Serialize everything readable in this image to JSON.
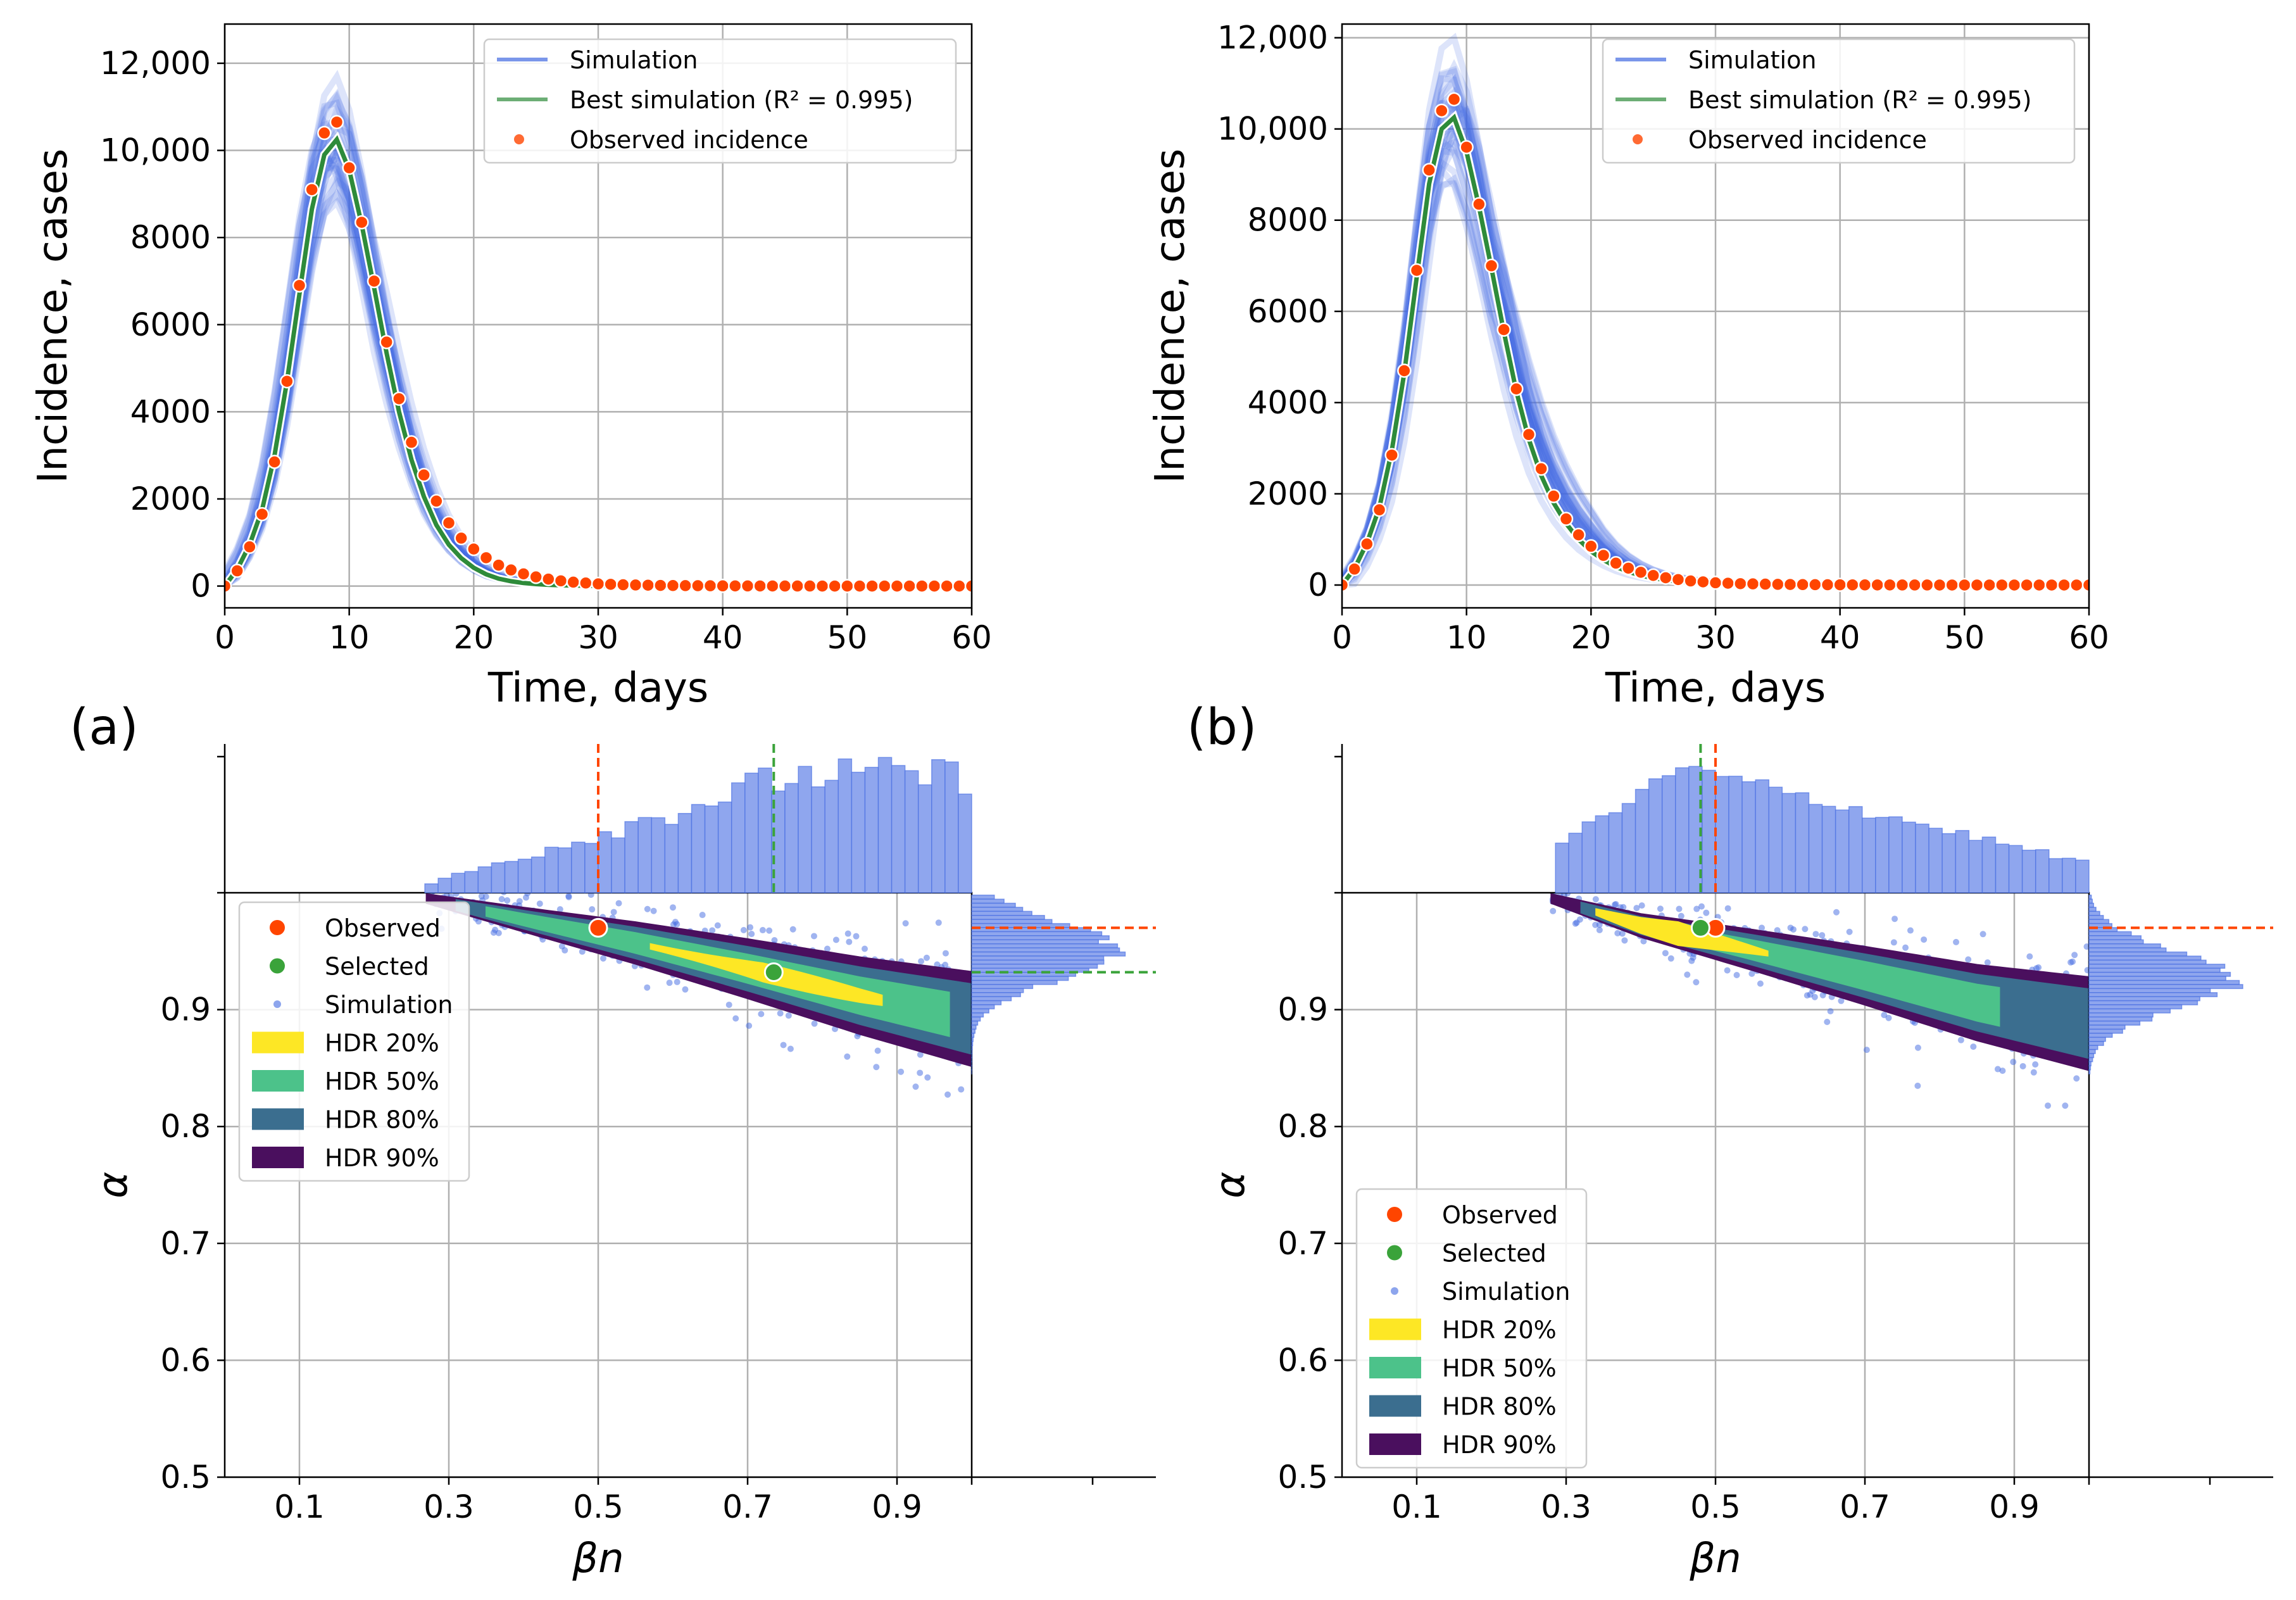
{
  "colors": {
    "simulation": "#4169e1",
    "best": "#2e8b3a",
    "observed": "#ff4500",
    "selected": "#3aa33a",
    "hdr20": "#fde725",
    "hdr50": "#4cc28a",
    "hdr80": "#3b6e8f",
    "hdr90": "#4a0f5e",
    "hist": "#8fa6ee"
  },
  "panels": [
    {
      "label": "(a)",
      "incidence": {
        "xlabel": "Time, days",
        "ylabel": "Incidence, cases",
        "xlim": [
          0,
          60
        ],
        "ylim": [
          -500,
          12900
        ],
        "xticks": [
          0,
          10,
          20,
          30,
          40,
          50,
          60
        ],
        "xtick_labels": [
          "0",
          "10",
          "20",
          "30",
          "40",
          "50",
          "60"
        ],
        "yticks": [
          0,
          2000,
          4000,
          6000,
          8000,
          10000,
          12000
        ],
        "ytick_labels": [
          "0",
          "2000",
          "4000",
          "6000",
          "8000",
          "10,000",
          "12,000"
        ],
        "legend": [
          {
            "key": "simulation",
            "label": "Simulation"
          },
          {
            "key": "best",
            "label": "Best simulation (R² = 0.995)"
          },
          {
            "key": "observed",
            "label": "Observed incidence"
          }
        ]
      },
      "params": {
        "xlabel": "βn",
        "ylabel": "α",
        "xlim": [
          0.0,
          1.0
        ],
        "ylim": [
          0.5,
          1.0
        ],
        "xticks": [
          0.1,
          0.3,
          0.5,
          0.7,
          0.9
        ],
        "xtick_labels": [
          "0.1",
          "0.3",
          "0.5",
          "0.7",
          "0.9"
        ],
        "yticks": [
          0.5,
          0.6,
          0.7,
          0.8,
          0.9
        ],
        "ytick_labels": [
          "0.5",
          "0.6",
          "0.7",
          "0.8",
          "0.9"
        ],
        "observed": {
          "beta": 0.5,
          "alpha": 0.97
        },
        "selected": {
          "beta": 0.735,
          "alpha": 0.932
        },
        "hdr_centerline": {
          "beta": [
            0.27,
            0.4,
            0.55,
            0.7,
            0.85,
            1.0
          ],
          "alpha": [
            0.995,
            0.977,
            0.957,
            0.935,
            0.912,
            0.892
          ]
        },
        "legend": [
          {
            "key": "observed",
            "label": "Observed"
          },
          {
            "key": "selected",
            "label": "Selected"
          },
          {
            "key": "simulation",
            "label": "Simulation"
          },
          {
            "key": "hdr20",
            "label": "HDR 20%"
          },
          {
            "key": "hdr50",
            "label": "HDR 50%"
          },
          {
            "key": "hdr80",
            "label": "HDR 80%"
          },
          {
            "key": "hdr90",
            "label": "HDR 90%"
          }
        ]
      }
    },
    {
      "label": "(b)",
      "incidence": {
        "xlabel": "Time, days",
        "ylabel": "Incidence, cases",
        "xlim": [
          0,
          60
        ],
        "ylim": [
          -500,
          12300
        ],
        "xticks": [
          0,
          10,
          20,
          30,
          40,
          50,
          60
        ],
        "xtick_labels": [
          "0",
          "10",
          "20",
          "30",
          "40",
          "50",
          "60"
        ],
        "yticks": [
          0,
          2000,
          4000,
          6000,
          8000,
          10000,
          12000
        ],
        "ytick_labels": [
          "0",
          "2000",
          "4000",
          "6000",
          "8000",
          "10,000",
          "12,000"
        ],
        "legend": [
          {
            "key": "simulation",
            "label": "Simulation"
          },
          {
            "key": "best",
            "label": "Best simulation (R² = 0.995)"
          },
          {
            "key": "observed",
            "label": "Observed incidence"
          }
        ]
      },
      "params": {
        "xlabel": "βn",
        "ylabel": "α",
        "xlim": [
          0.0,
          1.0
        ],
        "ylim": [
          0.5,
          1.0
        ],
        "xticks": [
          0.1,
          0.3,
          0.5,
          0.7,
          0.9
        ],
        "xtick_labels": [
          "0.1",
          "0.3",
          "0.5",
          "0.7",
          "0.9"
        ],
        "yticks": [
          0.5,
          0.6,
          0.7,
          0.8,
          0.9
        ],
        "ytick_labels": [
          "0.5",
          "0.6",
          "0.7",
          "0.8",
          "0.9"
        ],
        "observed": {
          "beta": 0.5,
          "alpha": 0.97
        },
        "selected": {
          "beta": 0.48,
          "alpha": 0.97
        },
        "hdr_centerline": {
          "beta": [
            0.28,
            0.4,
            0.55,
            0.7,
            0.85,
            1.0
          ],
          "alpha": [
            0.995,
            0.972,
            0.951,
            0.929,
            0.906,
            0.888
          ]
        },
        "legend": [
          {
            "key": "observed",
            "label": "Observed"
          },
          {
            "key": "selected",
            "label": "Selected"
          },
          {
            "key": "simulation",
            "label": "Simulation"
          },
          {
            "key": "hdr20",
            "label": "HDR 20%"
          },
          {
            "key": "hdr50",
            "label": "HDR 50%"
          },
          {
            "key": "hdr80",
            "label": "HDR 80%"
          },
          {
            "key": "hdr90",
            "label": "HDR 90%"
          }
        ]
      }
    }
  ],
  "chart_data": [
    {
      "type": "line",
      "title": "",
      "xlabel": "Time, days",
      "ylabel": "Incidence, cases",
      "xlim": [
        0,
        60
      ],
      "ylim": [
        -500,
        12900
      ],
      "x": [
        0,
        1,
        2,
        3,
        4,
        5,
        6,
        7,
        8,
        9,
        10,
        11,
        12,
        13,
        14,
        15,
        16,
        17,
        18,
        19,
        20,
        21,
        22,
        23,
        24,
        25,
        26,
        27,
        28,
        29,
        30,
        31,
        32,
        33,
        34,
        35,
        36,
        37,
        38,
        39,
        40,
        41,
        42,
        43,
        44,
        45,
        46,
        47,
        48,
        49,
        50,
        51,
        52,
        53,
        54,
        55,
        56,
        57,
        58,
        59,
        60
      ],
      "series": [
        {
          "name": "Observed incidence",
          "values": [
            0,
            350,
            900,
            1650,
            2850,
            4700,
            6900,
            9100,
            10400,
            10650,
            9600,
            8350,
            7000,
            5600,
            4300,
            3300,
            2550,
            1950,
            1450,
            1100,
            850,
            650,
            480,
            370,
            280,
            210,
            160,
            120,
            90,
            70,
            50,
            40,
            30,
            25,
            20,
            15,
            12,
            10,
            8,
            6,
            5,
            4,
            3,
            2,
            2,
            1,
            1,
            1,
            0,
            0,
            0,
            0,
            0,
            0,
            0,
            0,
            0,
            0,
            0,
            0,
            0
          ]
        },
        {
          "name": "Best simulation (R² = 0.995)",
          "values": [
            0,
            380,
            950,
            1750,
            3000,
            4700,
            6700,
            8650,
            9900,
            10250,
            9550,
            8300,
            6850,
            5350,
            4000,
            2900,
            2050,
            1400,
            950,
            640,
            420,
            270,
            170,
            110,
            70,
            45,
            28,
            18,
            12,
            8,
            5,
            3,
            2,
            1,
            1,
            0,
            0,
            0,
            0,
            0,
            0,
            0,
            0,
            0,
            0,
            0,
            0,
            0,
            0,
            0,
            0,
            0,
            0,
            0,
            0,
            0,
            0,
            0,
            0,
            0,
            0
          ]
        }
      ]
    },
    {
      "type": "scatter",
      "title": "",
      "xlabel": "βn",
      "ylabel": "α",
      "xlim": [
        0.0,
        1.0
      ],
      "ylim": [
        0.5,
        1.0
      ],
      "series": [
        {
          "name": "Observed",
          "x": [
            0.5
          ],
          "y": [
            0.97
          ]
        },
        {
          "name": "Selected",
          "x": [
            0.735
          ],
          "y": [
            0.932
          ]
        }
      ],
      "hdr_levels": [
        "HDR 20%",
        "HDR 50%",
        "HDR 80%",
        "HDR 90%"
      ],
      "marginal_reference_lines": {
        "observed_beta": 0.5,
        "selected_beta": 0.735,
        "observed_alpha": 0.97,
        "selected_alpha": 0.932
      }
    },
    {
      "type": "line",
      "title": "",
      "xlabel": "Time, days",
      "ylabel": "Incidence, cases",
      "xlim": [
        0,
        60
      ],
      "ylim": [
        -500,
        12300
      ],
      "x": [
        0,
        1,
        2,
        3,
        4,
        5,
        6,
        7,
        8,
        9,
        10,
        11,
        12,
        13,
        14,
        15,
        16,
        17,
        18,
        19,
        20,
        21,
        22,
        23,
        24,
        25,
        26,
        27,
        28,
        29,
        30,
        31,
        32,
        33,
        34,
        35,
        36,
        37,
        38,
        39,
        40,
        41,
        42,
        43,
        44,
        45,
        46,
        47,
        48,
        49,
        50,
        51,
        52,
        53,
        54,
        55,
        56,
        57,
        58,
        59,
        60
      ],
      "series": [
        {
          "name": "Observed incidence",
          "values": [
            0,
            350,
            900,
            1650,
            2850,
            4700,
            6900,
            9100,
            10400,
            10650,
            9600,
            8350,
            7000,
            5600,
            4300,
            3300,
            2550,
            1950,
            1450,
            1100,
            850,
            650,
            480,
            370,
            280,
            210,
            160,
            120,
            90,
            70,
            50,
            40,
            30,
            25,
            20,
            15,
            12,
            10,
            8,
            6,
            5,
            4,
            3,
            2,
            2,
            1,
            1,
            1,
            0,
            0,
            0,
            0,
            0,
            0,
            0,
            0,
            0,
            0,
            0,
            0,
            0
          ]
        },
        {
          "name": "Best simulation (R² = 0.995)",
          "values": [
            0,
            360,
            920,
            1700,
            2950,
            4650,
            6750,
            8800,
            10000,
            10250,
            9500,
            8300,
            6950,
            5550,
            4250,
            3200,
            2400,
            1800,
            1350,
            1000,
            740,
            550,
            400,
            290,
            210,
            150,
            110,
            80,
            58,
            42,
            30,
            22,
            16,
            11,
            8,
            6,
            4,
            3,
            2,
            1,
            1,
            1,
            0,
            0,
            0,
            0,
            0,
            0,
            0,
            0,
            0,
            0,
            0,
            0,
            0,
            0,
            0,
            0,
            0,
            0,
            0
          ]
        }
      ]
    },
    {
      "type": "scatter",
      "title": "",
      "xlabel": "βn",
      "ylabel": "α",
      "xlim": [
        0.0,
        1.0
      ],
      "ylim": [
        0.5,
        1.0
      ],
      "series": [
        {
          "name": "Observed",
          "x": [
            0.5
          ],
          "y": [
            0.97
          ]
        },
        {
          "name": "Selected",
          "x": [
            0.48
          ],
          "y": [
            0.97
          ]
        }
      ],
      "hdr_levels": [
        "HDR 20%",
        "HDR 50%",
        "HDR 80%",
        "HDR 90%"
      ],
      "marginal_reference_lines": {
        "observed_beta": 0.5,
        "selected_beta": 0.48,
        "observed_alpha": 0.97,
        "selected_alpha": 0.97
      }
    }
  ]
}
